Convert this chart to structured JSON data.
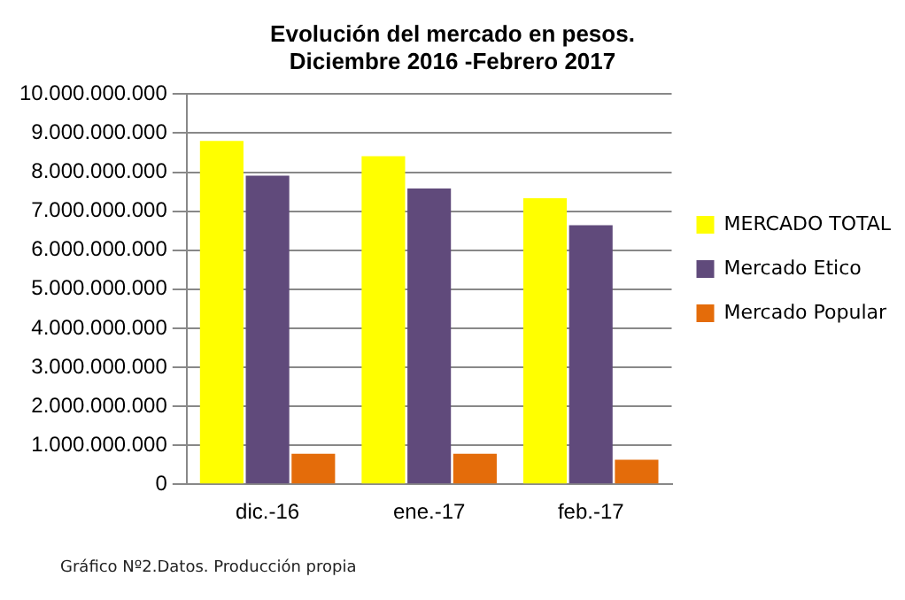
{
  "chart_data": {
    "type": "bar",
    "title": "Evolución del mercado en pesos.\nDiciembre 2016 -Febrero 2017",
    "categories": [
      "dic.-16",
      "ene.-17",
      "feb.-17"
    ],
    "series": [
      {
        "name": "MERCADO TOTAL",
        "color": "#ffff00",
        "values": [
          8800000000,
          8410000000,
          7330000000
        ]
      },
      {
        "name": "Mercado Etico",
        "color": "#604a7b",
        "values": [
          7910000000,
          7580000000,
          6640000000
        ]
      },
      {
        "name": "Mercado Popular",
        "color": "#e46c0a",
        "values": [
          780000000,
          780000000,
          630000000
        ]
      }
    ],
    "ylim": [
      0,
      10000000000
    ],
    "yticks": [
      0,
      {
        "value": 1000000000,
        "label": "1.000.000.000"
      },
      {
        "value": 2000000000,
        "label": "2.000.000.000"
      },
      {
        "value": 3000000000,
        "label": "3.000.000.000"
      },
      {
        "value": 4000000000,
        "label": "4.000.000.000"
      },
      {
        "value": 5000000000,
        "label": "5.000.000.000"
      },
      {
        "value": 6000000000,
        "label": "6.000.000.000"
      },
      {
        "value": 7000000000,
        "label": "7.000.000.000"
      },
      {
        "value": 8000000000,
        "label": "8.000.000.000"
      },
      {
        "value": 9000000000,
        "label": "9.000.000.000"
      },
      {
        "value": 10000000000,
        "label": "10.000.000.000"
      }
    ],
    "grid": "y",
    "legend": "right",
    "annotations": [
      "Gráfico Nº2.Datos. Producción propia"
    ]
  }
}
